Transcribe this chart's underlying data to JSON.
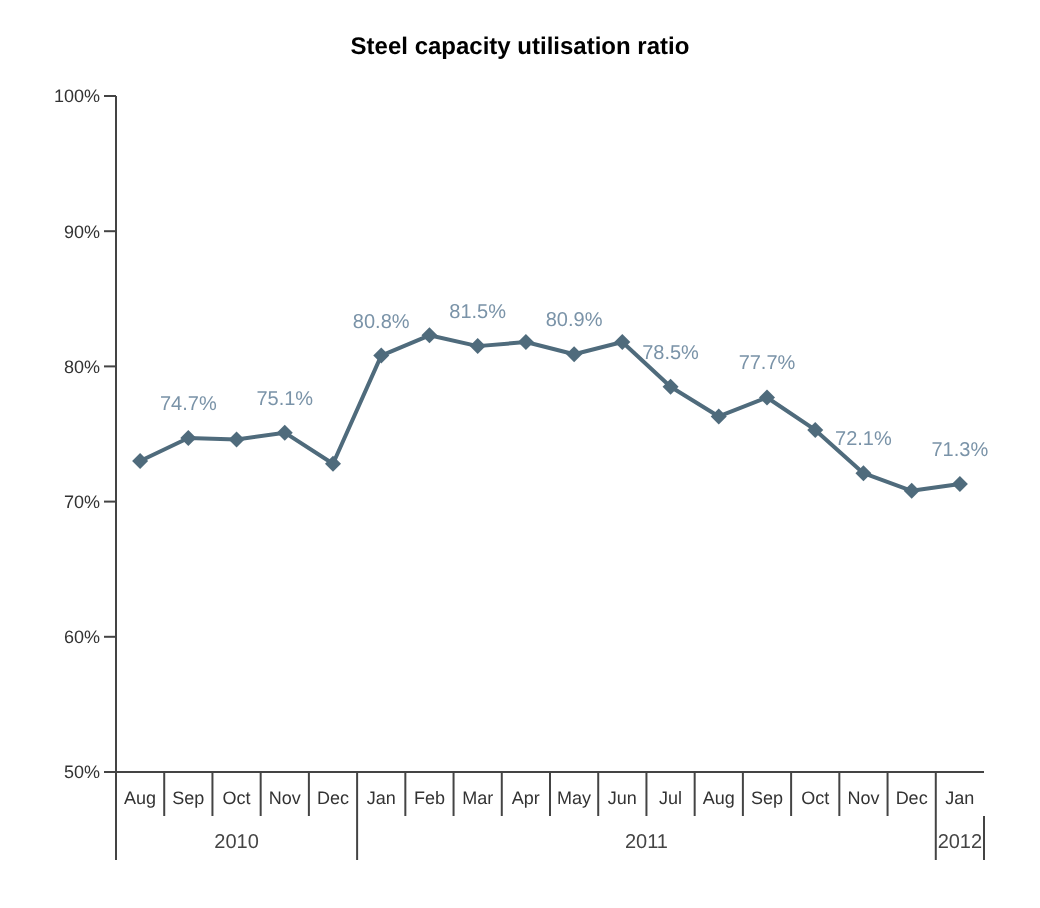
{
  "chart_data": {
    "type": "line",
    "title": "Steel capacity utilisation ratio",
    "categories": [
      "Aug",
      "Sep",
      "Oct",
      "Nov",
      "Dec",
      "Jan",
      "Feb",
      "Mar",
      "Apr",
      "May",
      "Jun",
      "Jul",
      "Aug",
      "Sep",
      "Oct",
      "Nov",
      "Dec",
      "Jan"
    ],
    "series": [
      {
        "color": "#4f6b7c",
        "values": [
          73.0,
          74.7,
          74.6,
          75.1,
          72.8,
          80.8,
          82.3,
          81.5,
          81.8,
          80.9,
          81.8,
          78.5,
          76.3,
          77.7,
          75.3,
          72.1,
          70.8,
          71.3
        ],
        "value_labels": [
          null,
          "74.7%",
          null,
          "75.1%",
          null,
          "80.8%",
          null,
          "81.5%",
          null,
          "80.9%",
          null,
          "78.5%",
          null,
          "77.7%",
          null,
          "72.1%",
          null,
          "71.3%"
        ]
      }
    ],
    "annotations": [
      "2010",
      "2011",
      "2012"
    ],
    "ylim": [
      50,
      100
    ],
    "yticks": [
      {
        "value": 50,
        "label": "50%"
      },
      {
        "value": 60,
        "label": "60%"
      },
      {
        "value": 70,
        "label": "70%"
      },
      {
        "value": 80,
        "label": "80%"
      },
      {
        "value": 90,
        "label": "90%"
      },
      {
        "value": 100,
        "label": "100%"
      }
    ],
    "grid": false,
    "legend": false,
    "marker": "diamond",
    "line_style": "solid"
  }
}
